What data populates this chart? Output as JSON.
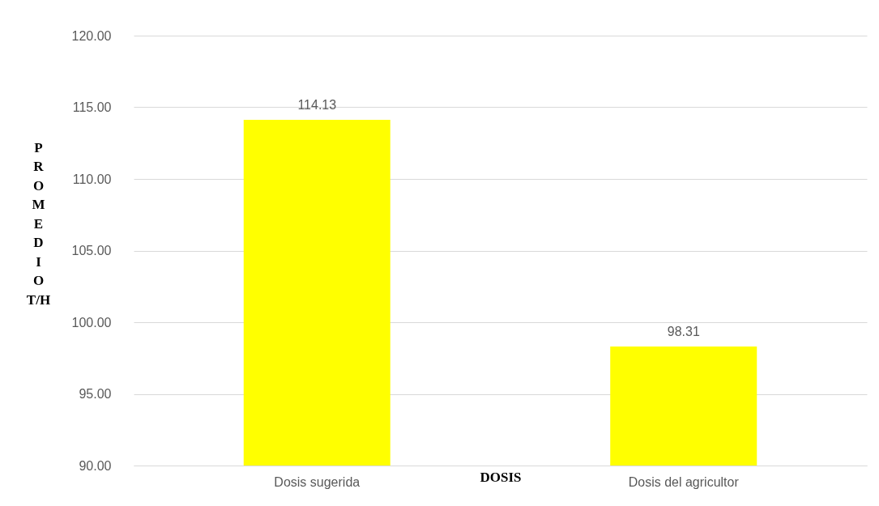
{
  "chart_data": {
    "type": "bar",
    "xlabel": "DOSIS",
    "ylabel": "PROMEDIO T/H",
    "categories": [
      "Dosis sugerida",
      "Dosis del agricultor"
    ],
    "values": [
      114.13,
      98.31
    ],
    "color": "#ffff00",
    "ylim": [
      90,
      120
    ],
    "yticks": [
      {
        "value": 90,
        "label": "90.00"
      },
      {
        "value": 95,
        "label": "95.00"
      },
      {
        "value": 100,
        "label": "100.00"
      },
      {
        "value": 105,
        "label": "105.00"
      },
      {
        "value": 110,
        "label": "110.00"
      },
      {
        "value": 115,
        "label": "115.00"
      },
      {
        "value": 120,
        "label": "120.00"
      }
    ],
    "grid": "y",
    "data_labels": true
  }
}
